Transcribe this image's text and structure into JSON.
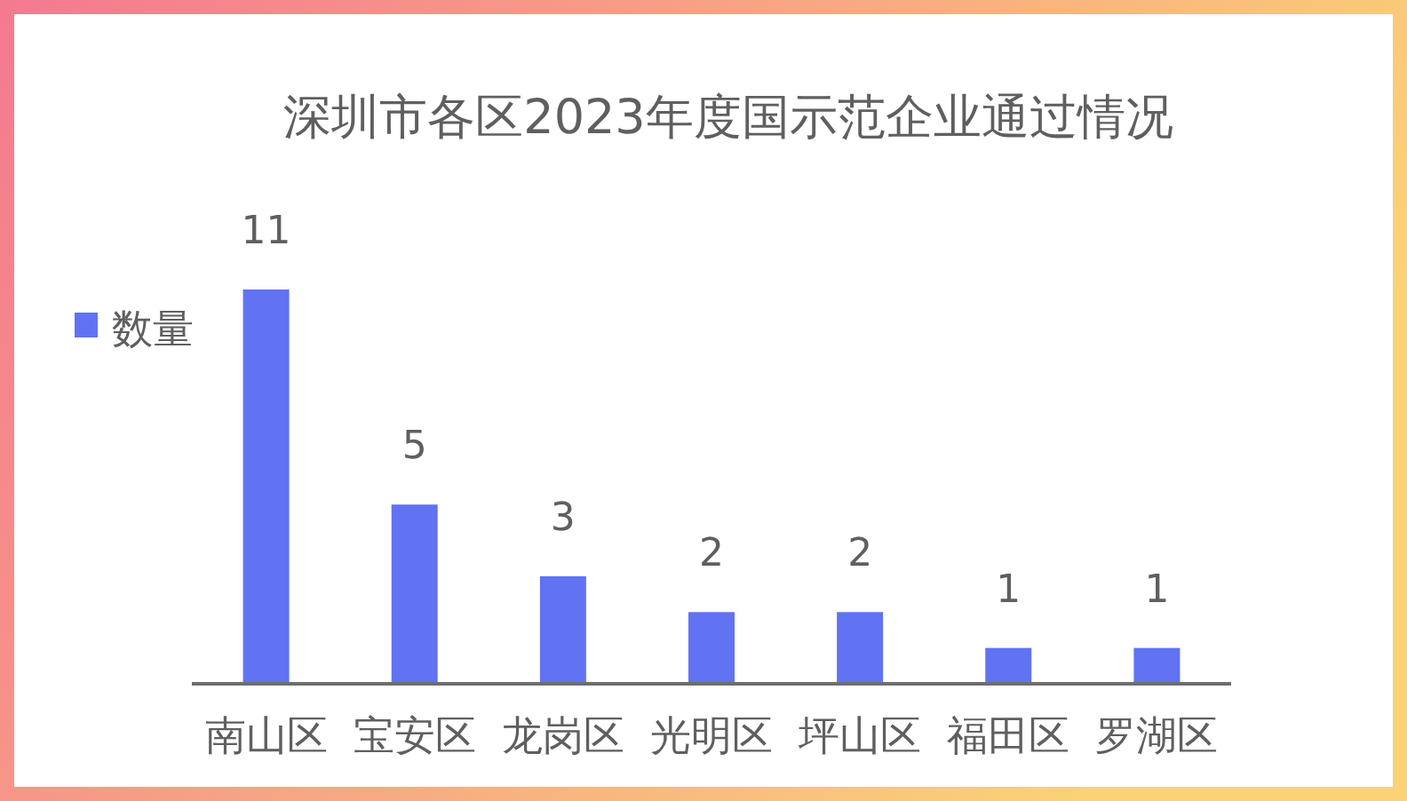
{
  "chart_data": {
    "type": "bar",
    "title": "深圳市各区2023年度国示范企业通过情况",
    "categories": [
      "南山区",
      "宝安区",
      "龙岗区",
      "光明区",
      "坪山区",
      "福田区",
      "罗湖区"
    ],
    "series": [
      {
        "name": "数量",
        "color": "#6173f2",
        "values": [
          11,
          5,
          3,
          2,
          2,
          1,
          1
        ]
      }
    ],
    "data_labels": true,
    "legend": "top left"
  }
}
